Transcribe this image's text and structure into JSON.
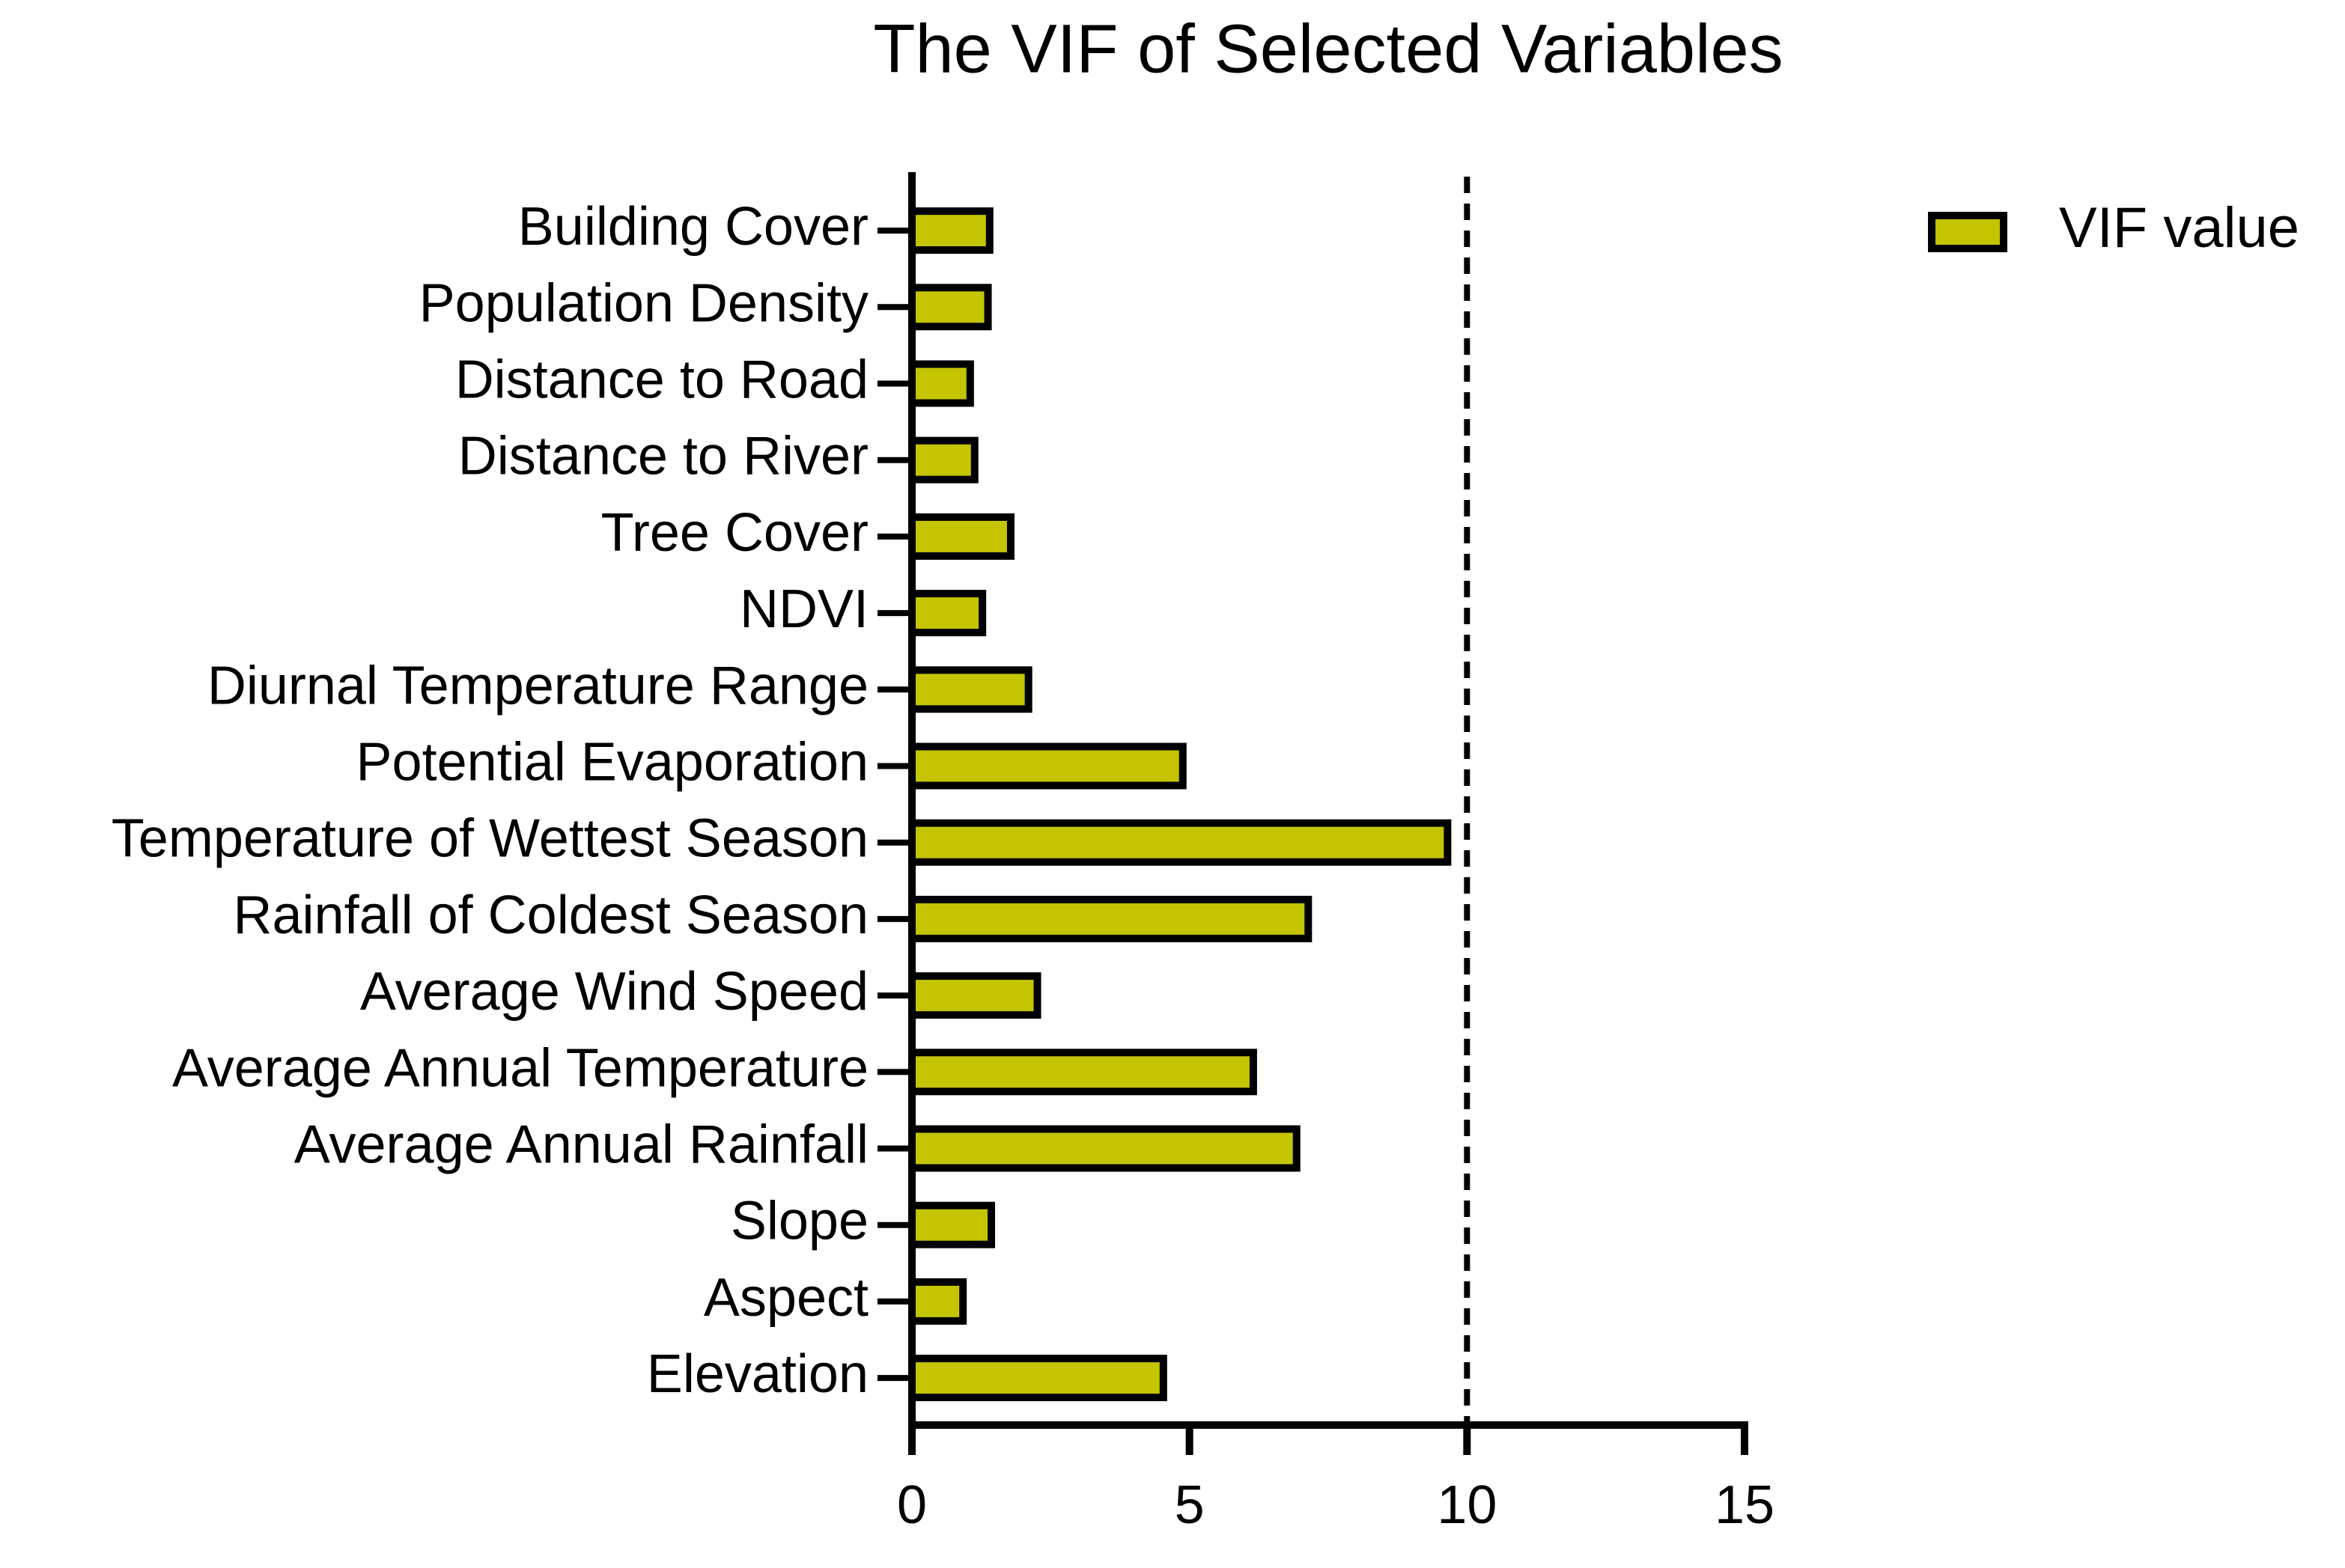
{
  "chart_data": {
    "type": "barh",
    "title": "The VIF of Selected Variables",
    "categories": [
      "Building Cover",
      "Population Density",
      "Distance to Road",
      "Distance to River",
      "Tree Cover",
      "NDVI",
      "Diurnal Temperature Range",
      "Potential Evaporation",
      "Temperature of Wettest Season",
      "Rainfall of Coldest Season",
      "Average Wind Speed",
      "Average Annual Temperature",
      "Average Annual Rainfall",
      "Slope",
      "Aspect",
      "Elevation"
    ],
    "series": [
      {
        "name": "VIF value",
        "color": "#c4c400",
        "values": [
          1.4,
          1.37,
          1.05,
          1.13,
          1.78,
          1.27,
          2.1,
          4.88,
          9.65,
          7.14,
          2.26,
          6.15,
          6.93,
          1.43,
          0.92,
          4.53
        ]
      }
    ],
    "threshold": 10,
    "xlim": [
      0,
      15
    ],
    "xticks": [
      0,
      5,
      10,
      15
    ],
    "legend": "top-right"
  }
}
